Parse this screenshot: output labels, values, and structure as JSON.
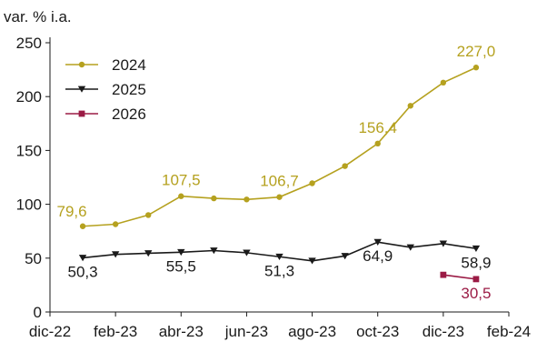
{
  "chart_data": {
    "type": "line",
    "title": "",
    "ylabel": "var. % i.a.",
    "xlabel": "",
    "ylim": [
      0,
      250
    ],
    "yticks": [
      0,
      50,
      100,
      150,
      200,
      250
    ],
    "x_ticks": [
      "dic-22",
      "feb-23",
      "abr-23",
      "jun-23",
      "ago-23",
      "oct-23",
      "dic-23",
      "feb-24"
    ],
    "x_range": [
      "dic-22",
      "feb-24"
    ],
    "grid": false,
    "legend": "top-left",
    "series": [
      {
        "name": "2024",
        "color": "#b5a11f",
        "marker": "circle",
        "x": [
          "ene-23",
          "feb-23",
          "mar-23",
          "abr-23",
          "may-23",
          "jun-23",
          "jul-23",
          "ago-23",
          "sep-23",
          "oct-23",
          "nov-23",
          "dic-23",
          "ene-24"
        ],
        "values": [
          79.6,
          81.5,
          90,
          107.5,
          105.5,
          104.5,
          106.7,
          119.5,
          135.5,
          156.4,
          191.5,
          213,
          227.0
        ],
        "labels": [
          {
            "x": "ene-23",
            "text": "79,6",
            "pos": "above-left"
          },
          {
            "x": "abr-23",
            "text": "107,5",
            "pos": "above"
          },
          {
            "x": "jul-23",
            "text": "106,7",
            "pos": "above"
          },
          {
            "x": "oct-23",
            "text": "156,4",
            "pos": "above"
          },
          {
            "x": "ene-24",
            "text": "227,0",
            "pos": "above"
          }
        ]
      },
      {
        "name": "2025",
        "color": "#1a1a1a",
        "marker": "triangle-down",
        "x": [
          "ene-23",
          "feb-23",
          "mar-23",
          "abr-23",
          "may-23",
          "jun-23",
          "jul-23",
          "ago-23",
          "sep-23",
          "oct-23",
          "nov-23",
          "dic-23",
          "ene-24"
        ],
        "values": [
          50.3,
          53.5,
          54.5,
          55.5,
          57,
          55,
          51.3,
          47.5,
          52,
          64.9,
          60,
          63.5,
          58.9
        ],
        "labels": [
          {
            "x": "ene-23",
            "text": "50,3",
            "pos": "below"
          },
          {
            "x": "abr-23",
            "text": "55,5",
            "pos": "below"
          },
          {
            "x": "jul-23",
            "text": "51,3",
            "pos": "below"
          },
          {
            "x": "oct-23",
            "text": "64,9",
            "pos": "below"
          },
          {
            "x": "ene-24",
            "text": "58,9",
            "pos": "below"
          }
        ]
      },
      {
        "name": "2026",
        "color": "#9b1b45",
        "marker": "square",
        "x": [
          "dic-23",
          "ene-24"
        ],
        "values": [
          34.5,
          30.5
        ],
        "labels": [
          {
            "x": "ene-24",
            "text": "30,5",
            "pos": "below"
          }
        ]
      }
    ]
  }
}
